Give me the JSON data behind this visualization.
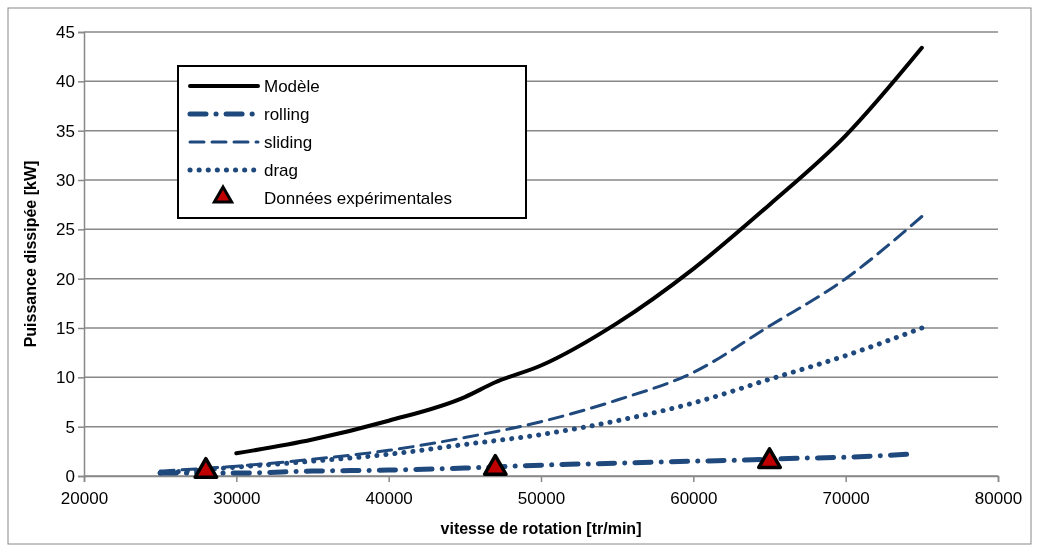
{
  "chart_data": {
    "type": "line",
    "xlabel": "vitesse de rotation [tr/min]",
    "ylabel": "Puissance dissipée [kW]",
    "xlim": [
      20000,
      80000
    ],
    "xticks": [
      20000,
      30000,
      40000,
      50000,
      60000,
      70000,
      80000
    ],
    "ylim": [
      0,
      45
    ],
    "yticks": [
      0,
      5,
      10,
      15,
      20,
      25,
      30,
      35,
      40,
      45
    ],
    "grid": "y",
    "legend": "top left",
    "series": [
      {
        "name": "Modèle",
        "color": "#000000",
        "line_style": "solid",
        "x": [
          30000,
          35000,
          40000,
          45000,
          47000,
          50000,
          55000,
          60000,
          65000,
          70000,
          75000
        ],
        "values": [
          2.3,
          3.7,
          5.6,
          8.0,
          9.5,
          11.2,
          15.5,
          21,
          27.5,
          34.5,
          43.4
        ]
      },
      {
        "name": "rolling",
        "color": "#1f497d",
        "line_style": "dashdot",
        "x": [
          25000,
          30000,
          35000,
          40000,
          45000,
          50000,
          55000,
          60000,
          63000,
          67000,
          70000,
          74000
        ],
        "values": [
          0.3,
          0.3,
          0.5,
          0.6,
          0.8,
          1.1,
          1.3,
          1.5,
          1.6,
          1.8,
          1.9,
          2.2
        ]
      },
      {
        "name": "sliding",
        "color": "#1f497d",
        "line_style": "dashed",
        "x": [
          25000,
          30000,
          35000,
          40000,
          45000,
          50000,
          55000,
          60000,
          65000,
          70000,
          75000
        ],
        "values": [
          0.5,
          1.0,
          1.7,
          2.6,
          3.9,
          5.5,
          7.7,
          10.5,
          15.2,
          20,
          26.3
        ]
      },
      {
        "name": "drag",
        "color": "#1f497d",
        "line_style": "dotted",
        "x": [
          25000,
          30000,
          35000,
          40000,
          45000,
          50000,
          55000,
          60000,
          65000,
          70000,
          75000
        ],
        "values": [
          0.3,
          0.9,
          1.5,
          2.2,
          3.2,
          4.2,
          5.6,
          7.4,
          9.8,
          12.2,
          15
        ]
      },
      {
        "name": "Données expérimentales",
        "type": "scatter",
        "marker": "triangle",
        "color": "#c00000",
        "x": [
          28000,
          47000,
          65000
        ],
        "values": [
          0.5,
          0.8,
          1.5
        ]
      }
    ]
  }
}
